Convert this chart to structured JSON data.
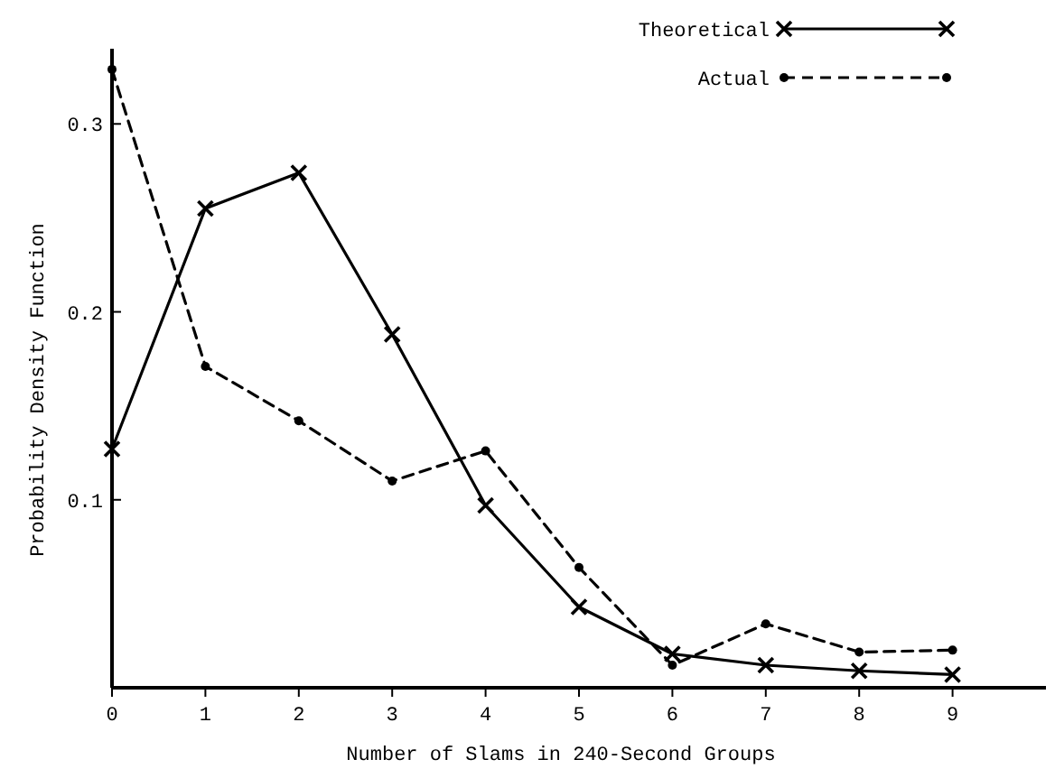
{
  "chart_data": {
    "type": "line",
    "xlabel": "Number of Slams in 240-Second Groups",
    "ylabel": "Probability Density Function",
    "x": [
      0,
      1,
      2,
      3,
      4,
      5,
      6,
      7,
      8,
      9
    ],
    "xlim": [
      0,
      10
    ],
    "xticks": [
      0,
      1,
      2,
      3,
      4,
      5,
      6,
      7,
      8,
      9
    ],
    "ylim": [
      0,
      0.34
    ],
    "yticks": [
      0.1,
      0.2,
      0.3
    ],
    "grid": false,
    "legend": "top right",
    "series": [
      {
        "name": "Theoretical",
        "color": "#000000",
        "marker": "cross",
        "line_style": "solid",
        "values": [
          0.127,
          0.255,
          0.274,
          0.188,
          0.097,
          0.043,
          0.018,
          0.012,
          0.009,
          0.007
        ]
      },
      {
        "name": "Actual",
        "color": "#000000",
        "marker": "circle",
        "line_style": "dashed",
        "values": [
          0.329,
          0.171,
          0.142,
          0.11,
          0.126,
          0.064,
          0.012,
          0.034,
          0.019,
          0.02
        ]
      }
    ]
  }
}
